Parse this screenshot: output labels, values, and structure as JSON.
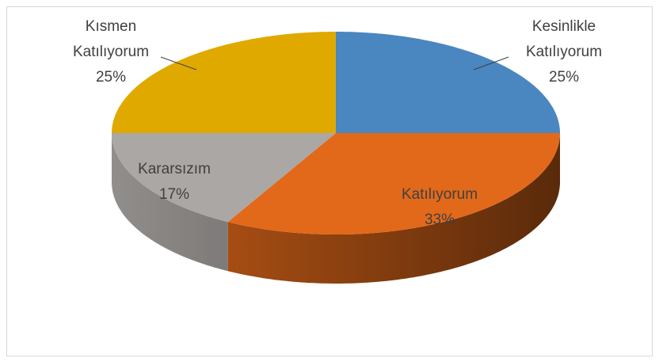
{
  "chart_data": {
    "type": "pie",
    "categories": [
      "Kesinlikle Katılıyorum",
      "Katılıyorum",
      "Kararsızım",
      "Kısmen Katılıyorum"
    ],
    "values": [
      25,
      33,
      17,
      25
    ],
    "value_labels": [
      "25%",
      "33%",
      "17%",
      "25%"
    ],
    "colors": [
      "#4a86c0",
      "#e2691a",
      "#aaa7a5",
      "#e0a900"
    ]
  }
}
